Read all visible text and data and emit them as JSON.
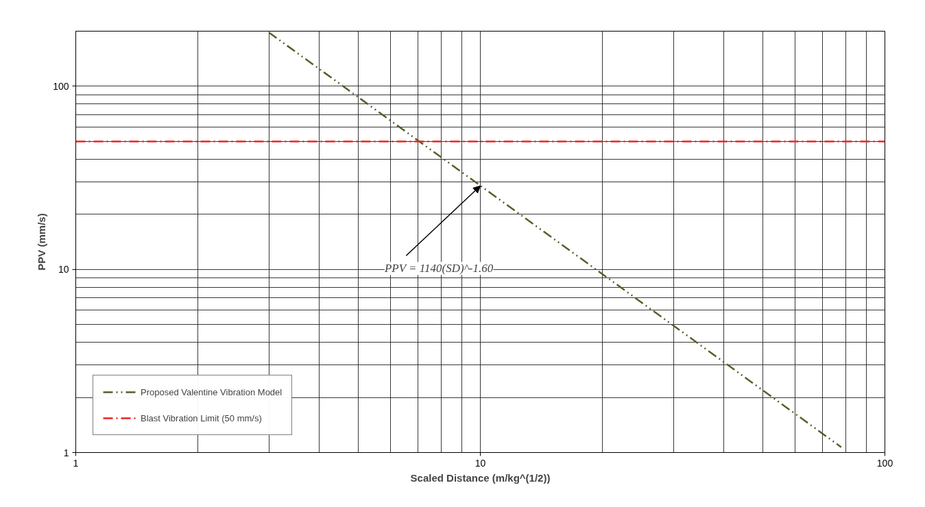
{
  "chart_data": {
    "type": "line",
    "xlabel": "Scaled Distance (m/kg^(1/2))",
    "ylabel": "PPV (mm/s)",
    "log": "xy",
    "xlim": [
      1,
      100
    ],
    "ylim": [
      1,
      200
    ],
    "xticks": [
      1,
      10,
      100
    ],
    "yticks": [
      1,
      10,
      100
    ],
    "grid": true,
    "legend": "bottom left",
    "series": [
      {
        "name": "Proposed Valentine Vibration Model",
        "color": "#4f6228",
        "x": [
          3,
          78
        ],
        "values": [
          197,
          1.07
        ],
        "line_style": "dashdotdot"
      }
    ],
    "ref_lines": [
      {
        "axis": "y",
        "value": 50,
        "label": "Blast Vibration Limit (50 mm/s)",
        "color": "#ee2222",
        "line_style": "dashdot"
      }
    ],
    "annotations": [
      {
        "text": "PPV = 1140(SD)^-1.60",
        "x": 10,
        "y": 28.6
      }
    ]
  }
}
